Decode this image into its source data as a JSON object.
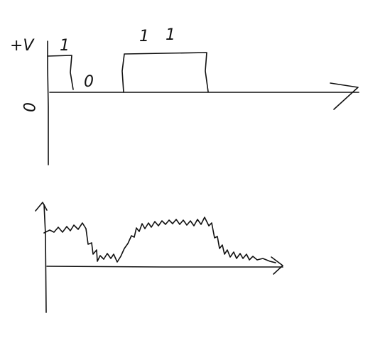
{
  "diagram": {
    "top_plot": {
      "y_axis_label": "+V",
      "origin_label": "0",
      "bit_labels": [
        "1",
        "0",
        "1",
        "1"
      ]
    }
  }
}
